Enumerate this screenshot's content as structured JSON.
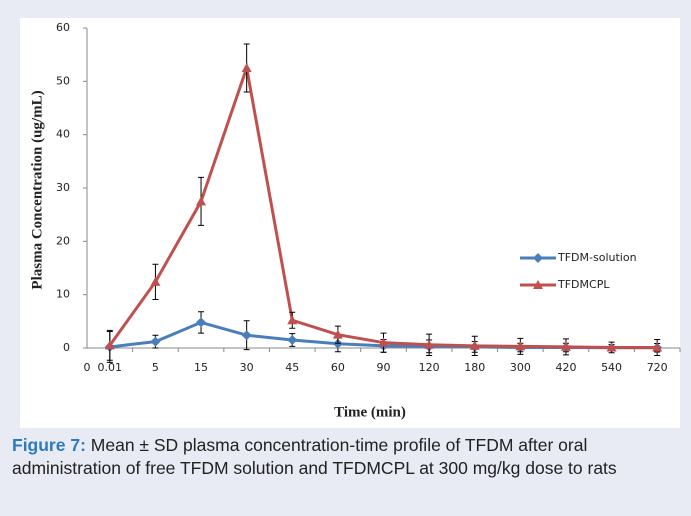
{
  "chart_data": {
    "type": "line",
    "y_axis_label": "Plasma Concentration (ug/mL)",
    "x_axis_label": "Time (min)",
    "x_origin_label": "0",
    "categories": [
      "0.01",
      "5",
      "15",
      "30",
      "45",
      "60",
      "90",
      "120",
      "180",
      "300",
      "420",
      "540",
      "720"
    ],
    "series": [
      {
        "name": "TFDM-solution",
        "color": "#4a7ebb",
        "marker": "diamond",
        "values": [
          0.2,
          1.2,
          4.8,
          2.4,
          1.5,
          0.8,
          0.4,
          0.3,
          0.2,
          0.1,
          0.1,
          0.05,
          0.05
        ],
        "errors": [
          2.9,
          1.2,
          2.0,
          2.7,
          1.2,
          1.5,
          1.2,
          1.2,
          1.0,
          0.8,
          0.8,
          0.6,
          0.8
        ]
      },
      {
        "name": "TFDMCPL",
        "color": "#c0504d",
        "marker": "triangle",
        "values": [
          0.5,
          12.4,
          27.5,
          52.5,
          5.2,
          2.5,
          1.0,
          0.6,
          0.4,
          0.3,
          0.2,
          0.1,
          0.1
        ],
        "errors": [
          2.8,
          3.3,
          4.5,
          4.5,
          1.5,
          1.6,
          1.8,
          2.0,
          1.8,
          1.5,
          1.5,
          1.0,
          1.5
        ]
      }
    ],
    "ylim": [
      0,
      60
    ],
    "yticks": [
      0,
      10,
      20,
      30,
      40,
      50,
      60
    ],
    "legend": "right"
  },
  "caption": {
    "label": "Figure 7:",
    "text": "Mean ± SD plasma concentration-time profile of TFDM after oral administration of free TFDM solution and TFDMCPL at 300 mg/kg dose to rats"
  }
}
